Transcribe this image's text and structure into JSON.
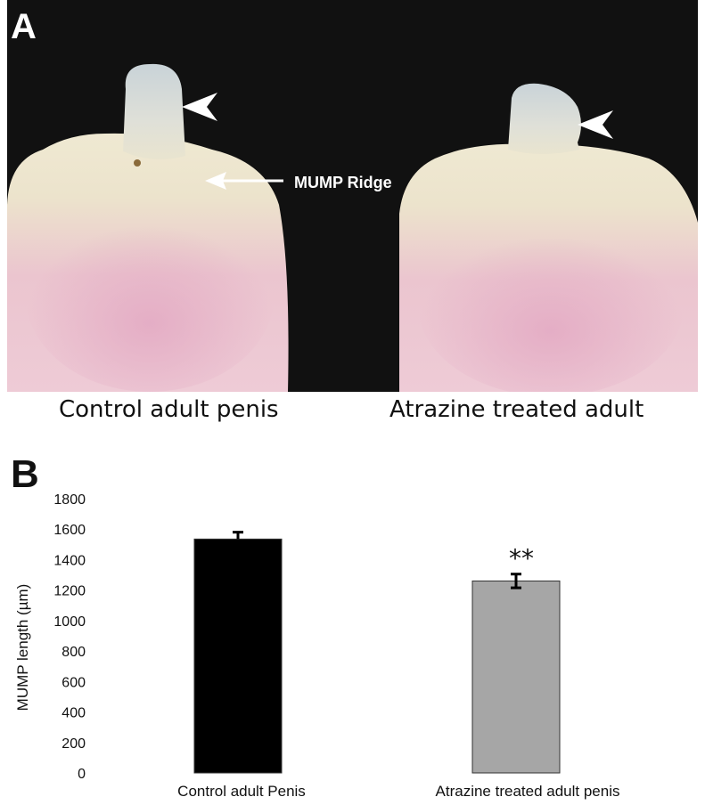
{
  "panel_a": {
    "letter": "A",
    "ridge_label": "MUMP Ridge",
    "captions": [
      "Control adult penis",
      "Atrazine treated adult"
    ]
  },
  "panel_b": {
    "letter": "B"
  },
  "colors": {
    "photo_background": "#111111",
    "tissue_top": "#ece6cf",
    "tissue_bottom": "#e9b6c8",
    "annotation": "#ffffff",
    "bar_control": "#000000",
    "bar_atrazine": "#a6a6a6"
  },
  "icons": [
    "arrowhead-icon",
    "arrow-icon"
  ],
  "chart_data": {
    "type": "bar",
    "categories": [
      "Control adult Penis",
      "Atrazine treated adult penis"
    ],
    "values": [
      1535,
      1260
    ],
    "errors": [
      45,
      45
    ],
    "bar_colors": [
      "#000000",
      "#a6a6a6"
    ],
    "significance": [
      "",
      "**"
    ],
    "xlabel": "",
    "ylabel": "MUMP length (µm)",
    "ylim": [
      0,
      1800
    ],
    "yticks": [
      0,
      200,
      400,
      600,
      800,
      1000,
      1200,
      1400,
      1600,
      1800
    ],
    "grid": false,
    "legend": "none"
  }
}
